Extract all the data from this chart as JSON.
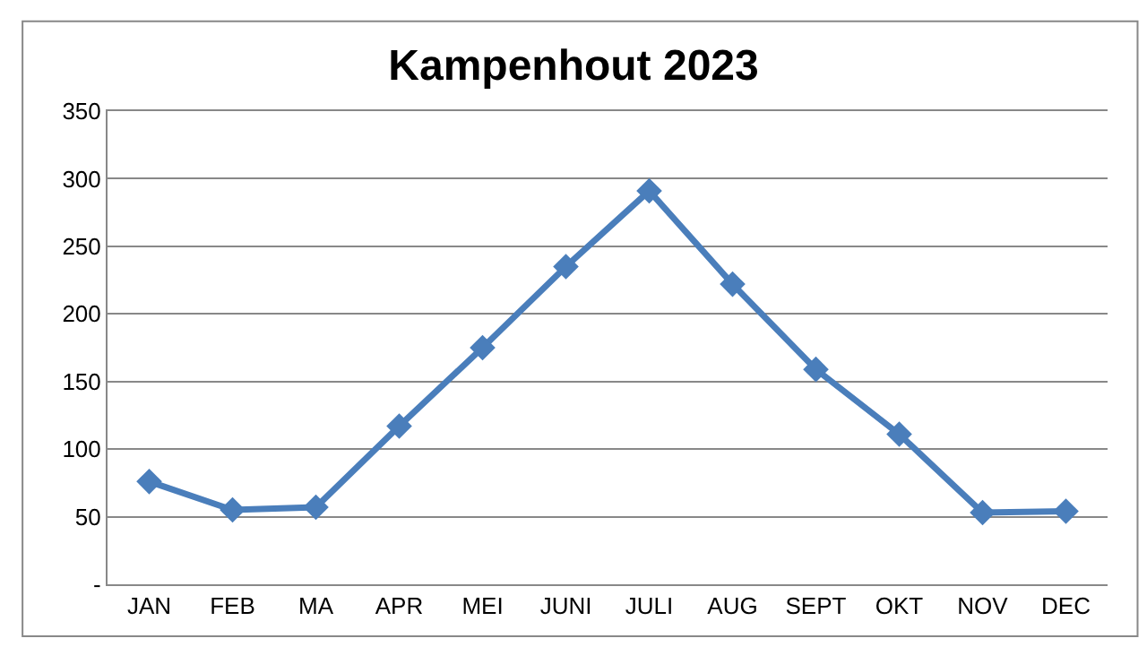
{
  "chart_data": {
    "type": "line",
    "title": "Kampenhout 2023",
    "categories": [
      "JAN",
      "FEB",
      "MA",
      "APR",
      "MEI",
      "JUNI",
      "JULI",
      "AUG",
      "SEPT",
      "OKT",
      "NOV",
      "DEC"
    ],
    "series": [
      {
        "color": "#4a7ebb",
        "values": [
          76,
          55,
          57,
          117,
          175,
          235,
          291,
          222,
          159,
          111,
          53,
          54
        ]
      }
    ],
    "ylim": [
      0,
      350
    ],
    "yticks": [
      {
        "value": 0,
        "label": "-"
      },
      50,
      100,
      150,
      200,
      250,
      300,
      350
    ],
    "grid": "y",
    "marker": "diamond",
    "line_style": "solid"
  }
}
